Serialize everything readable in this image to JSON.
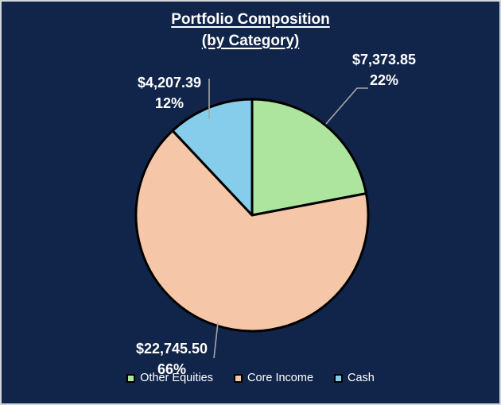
{
  "frame": {
    "background": "#112449",
    "border_color": "#d3d6db"
  },
  "title": {
    "line1": "Portfolio Composition",
    "line2": "(by Category)"
  },
  "chart_data": {
    "type": "pie",
    "title": "Portfolio Composition (by Category)",
    "start_angle_deg": 0,
    "direction": "clockwise",
    "legend_position": "bottom",
    "slice_border_color": "#000000",
    "leader_line_color": "#a6a6a6",
    "label_color": "#ffffff",
    "slices": [
      {
        "label": "Other Equities",
        "value": 7373.85,
        "value_label": "$7,373.85",
        "percent": 22,
        "percent_label": "22%",
        "color": "#ade59e"
      },
      {
        "label": "Core Income",
        "value": 22745.5,
        "value_label": "$22,745.50",
        "percent": 66,
        "percent_label": "66%",
        "color": "#f6c6a9"
      },
      {
        "label": "Cash",
        "value": 4207.39,
        "value_label": "$4,207.39",
        "percent": 12,
        "percent_label": "12%",
        "color": "#85cdeb"
      }
    ]
  }
}
